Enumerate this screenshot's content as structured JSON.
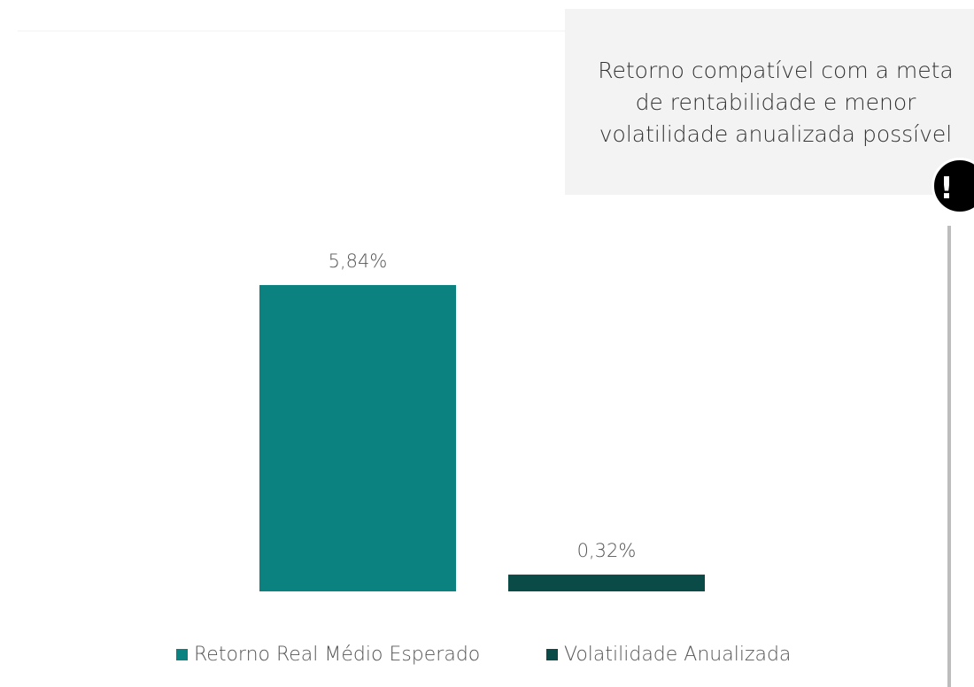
{
  "chart_data": {
    "type": "bar",
    "annotation": "Retorno compatível com a meta de rentabilidade e menor volatilidade anualizada possível",
    "alert_icon": "!",
    "categories": [
      null
    ],
    "series": [
      {
        "name": "Retorno Real Médio Esperado",
        "color": "#0b8280",
        "values": [
          5.84
        ],
        "value_labels": [
          "5,84%"
        ]
      },
      {
        "name": "Volatilidade Anualizada",
        "color": "#0a4a47",
        "values": [
          0.32
        ],
        "value_labels": [
          "0,32%"
        ]
      }
    ],
    "ylim": [
      0,
      6
    ]
  }
}
